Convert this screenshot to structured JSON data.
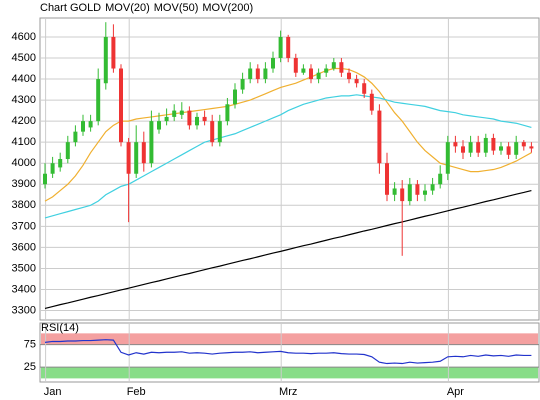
{
  "chart_data": [
    {
      "type": "candlestick",
      "categories": [
        null,
        "Jan",
        null,
        null,
        null,
        null,
        null,
        null,
        null,
        null,
        null,
        null,
        "Feb",
        null,
        null,
        null,
        null,
        null,
        null,
        null,
        null,
        null,
        null,
        null,
        null,
        null,
        null,
        null,
        null,
        null,
        null,
        null,
        "Mrz",
        null,
        null,
        null,
        null,
        null,
        null,
        null,
        null,
        null,
        null,
        null,
        null,
        null,
        null,
        null,
        null,
        null,
        null,
        null,
        null,
        null,
        "Apr",
        null,
        null,
        null,
        null,
        null,
        null,
        null,
        null,
        null,
        null
      ],
      "candles": {
        "name": "Chart GOLD",
        "color": "#cc3333",
        "up_color": "#33bb33",
        "down_color": "#ee3333",
        "open": [
          3900,
          3950,
          3980,
          4020,
          4100,
          4150,
          4170,
          4200,
          4380,
          4600,
          4450,
          4100,
          3950,
          4100,
          4000,
          4160,
          4200,
          4220,
          4230,
          4250,
          4180,
          4220,
          4200,
          4100,
          4200,
          4280,
          4350,
          4400,
          4450,
          4400,
          4450,
          4500,
          4600,
          4500,
          4430,
          4450,
          4400,
          4430,
          4450,
          4480,
          4430,
          4400,
          4380,
          4330,
          4250,
          4000,
          3850,
          3880,
          3820,
          3900,
          3850,
          3870,
          3900,
          3950,
          4100,
          4080,
          4050,
          4100,
          4050,
          4120,
          4060,
          4080,
          4040,
          4100,
          4080
        ],
        "high": [
          4000,
          4030,
          4050,
          4130,
          4180,
          4230,
          4230,
          4450,
          4670,
          4660,
          4470,
          4120,
          4180,
          4150,
          4250,
          4240,
          4260,
          4280,
          4290,
          4270,
          4240,
          4250,
          4230,
          4230,
          4310,
          4380,
          4430,
          4480,
          4470,
          4480,
          4530,
          4630,
          4610,
          4520,
          4470,
          4470,
          4450,
          4470,
          4500,
          4500,
          4450,
          4420,
          4400,
          4350,
          4280,
          4050,
          3910,
          3920,
          3930,
          3920,
          3900,
          3930,
          3990,
          4130,
          4130,
          4110,
          4130,
          4130,
          4140,
          4140,
          4100,
          4100,
          4130,
          4110,
          4100
        ],
        "low": [
          3880,
          3930,
          3960,
          4000,
          4080,
          4130,
          4150,
          4180,
          4350,
          4430,
          4080,
          3720,
          3930,
          3960,
          3980,
          4140,
          4180,
          4200,
          4210,
          4160,
          4160,
          4180,
          4080,
          4080,
          4180,
          4260,
          4330,
          4380,
          4380,
          4380,
          4430,
          4480,
          4480,
          4410,
          4420,
          4380,
          4380,
          4410,
          4440,
          4410,
          4380,
          4360,
          4310,
          4230,
          3950,
          3820,
          3820,
          3560,
          3800,
          3820,
          3820,
          3850,
          3880,
          3920,
          4050,
          4020,
          4030,
          4030,
          4030,
          4040,
          4040,
          4020,
          4020,
          4060,
          4050
        ],
        "close": [
          3950,
          4000,
          4020,
          4100,
          4150,
          4200,
          4200,
          4400,
          4600,
          4450,
          4100,
          3950,
          4100,
          4000,
          4200,
          4200,
          4220,
          4250,
          4250,
          4180,
          4220,
          4200,
          4100,
          4200,
          4280,
          4350,
          4400,
          4450,
          4400,
          4450,
          4500,
          4600,
          4500,
          4430,
          4450,
          4400,
          4430,
          4450,
          4480,
          4430,
          4400,
          4380,
          4330,
          4250,
          4000,
          3850,
          3880,
          3820,
          3900,
          3850,
          3870,
          3900,
          3950,
          4100,
          4080,
          4050,
          4100,
          4050,
          4120,
          4060,
          4080,
          4040,
          4100,
          4080,
          4070
        ]
      },
      "series": [
        {
          "name": "MOV(20)",
          "color": "#f0b030",
          "values": [
            3820,
            3840,
            3870,
            3900,
            3940,
            3990,
            4050,
            4100,
            4150,
            4180,
            4200,
            4200,
            4210,
            4215,
            4220,
            4225,
            4230,
            4235,
            4240,
            4245,
            4250,
            4255,
            4260,
            4265,
            4270,
            4280,
            4290,
            4300,
            4315,
            4330,
            4345,
            4360,
            4370,
            4380,
            4395,
            4410,
            4425,
            4440,
            4450,
            4450,
            4445,
            4430,
            4410,
            4380,
            4340,
            4290,
            4240,
            4200,
            4150,
            4100,
            4060,
            4030,
            4000,
            3990,
            3980,
            3970,
            3960,
            3960,
            3965,
            3970,
            3980,
            3995,
            4010,
            4030,
            4050
          ]
        },
        {
          "name": "MOV(50)",
          "color": "#40d0e0",
          "values": [
            3740,
            3750,
            3760,
            3770,
            3780,
            3790,
            3800,
            3820,
            3850,
            3870,
            3890,
            3900,
            3920,
            3940,
            3960,
            3980,
            4000,
            4020,
            4040,
            4060,
            4080,
            4100,
            4110,
            4120,
            4130,
            4140,
            4155,
            4170,
            4185,
            4200,
            4215,
            4230,
            4250,
            4265,
            4280,
            4290,
            4300,
            4310,
            4315,
            4320,
            4320,
            4325,
            4320,
            4315,
            4310,
            4300,
            4290,
            4285,
            4280,
            4275,
            4270,
            4260,
            4250,
            4245,
            4240,
            4230,
            4225,
            4220,
            4215,
            4210,
            4200,
            4195,
            4190,
            4180,
            4170
          ]
        },
        {
          "name": "MOV(200)",
          "color": "#000000",
          "values": [
            3310,
            3319,
            3328,
            3336,
            3345,
            3354,
            3363,
            3371,
            3380,
            3389,
            3398,
            3406,
            3415,
            3424,
            3433,
            3441,
            3450,
            3459,
            3468,
            3476,
            3485,
            3494,
            3503,
            3511,
            3520,
            3529,
            3538,
            3546,
            3555,
            3564,
            3573,
            3581,
            3590,
            3599,
            3608,
            3616,
            3625,
            3634,
            3643,
            3651,
            3660,
            3669,
            3678,
            3686,
            3695,
            3704,
            3713,
            3721,
            3730,
            3739,
            3748,
            3756,
            3765,
            3774,
            3783,
            3791,
            3800,
            3809,
            3818,
            3826,
            3835,
            3844,
            3853,
            3861,
            3870
          ]
        }
      ],
      "ylim": [
        3255,
        4690
      ],
      "yticks": [
        3300,
        3400,
        3500,
        3600,
        3700,
        3800,
        3900,
        4000,
        4100,
        4200,
        4300,
        4400,
        4500,
        4600
      ],
      "grid": true
    },
    {
      "type": "line",
      "series": [
        {
          "name": "RSI(14)",
          "color": "#2233cc",
          "values": [
            80,
            82,
            82,
            83,
            83,
            84,
            84,
            85,
            86,
            85,
            58,
            52,
            57,
            54,
            58,
            57,
            58,
            58,
            59,
            56,
            57,
            56,
            54,
            56,
            57,
            58,
            58,
            59,
            57,
            58,
            59,
            60,
            57,
            56,
            56,
            55,
            56,
            56,
            57,
            55,
            54,
            54,
            53,
            48,
            36,
            33,
            34,
            33,
            36,
            34,
            35,
            36,
            38,
            48,
            49,
            48,
            51,
            49,
            52,
            50,
            51,
            49,
            52,
            51,
            51
          ]
        }
      ],
      "bands": [
        {
          "range": [
            75,
            100
          ],
          "color": "#f4a0a0"
        },
        {
          "range": [
            0,
            25
          ],
          "color": "#88dd88"
        }
      ],
      "ylim": [
        -8,
        123
      ],
      "yticks": [
        25,
        75
      ]
    }
  ]
}
